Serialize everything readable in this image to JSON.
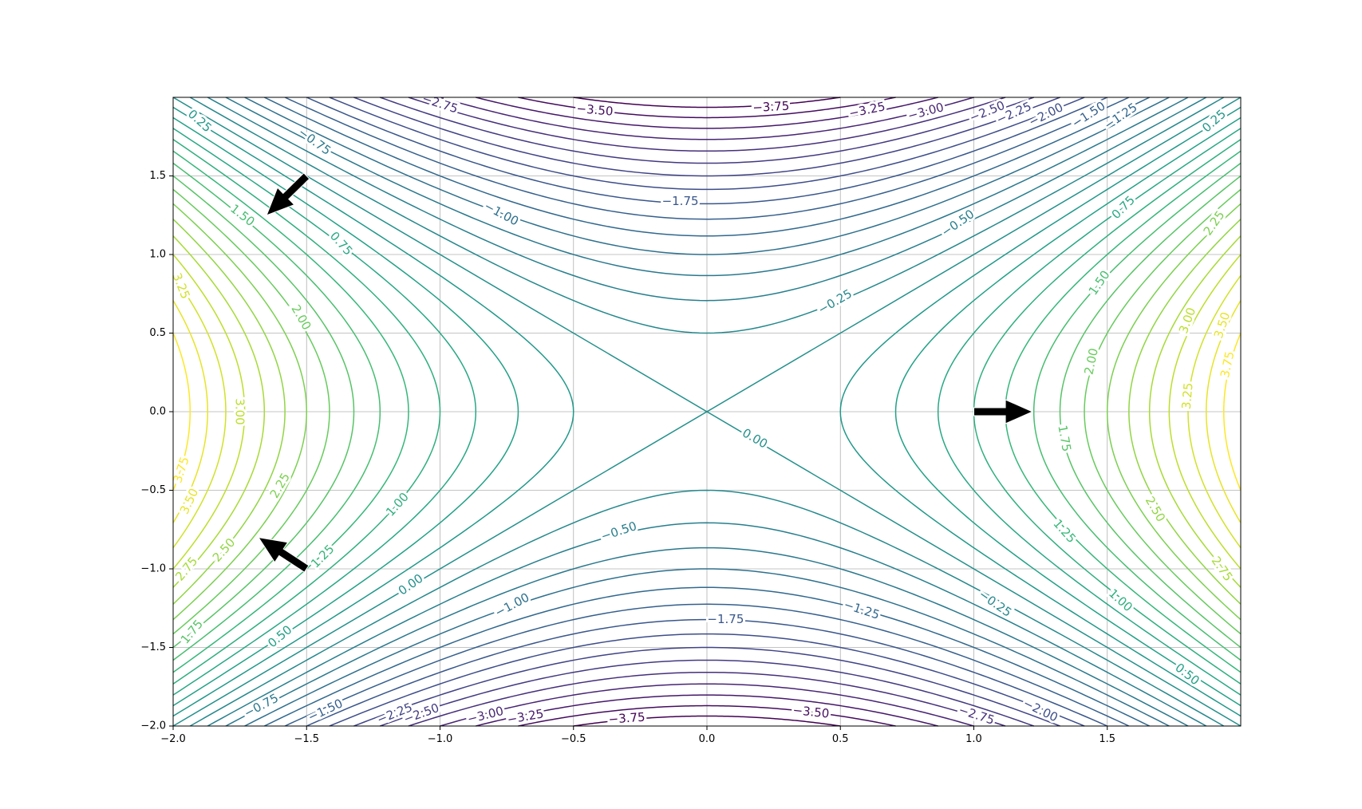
{
  "chart_data": {
    "type": "contour",
    "title": "",
    "xlabel": "",
    "ylabel": "",
    "function": "z = x^2 - y^2",
    "xlim": [
      -2.0,
      2.0
    ],
    "ylim": [
      -2.0,
      2.0
    ],
    "grid": true,
    "colormap": "viridis",
    "x_ticks": [
      "−2.0",
      "−1.5",
      "−1.0",
      "−0.5",
      "0.0",
      "0.5",
      "1.0",
      "1.5"
    ],
    "x_tick_values": [
      -2.0,
      -1.5,
      -1.0,
      -0.5,
      0.0,
      0.5,
      1.0,
      1.5
    ],
    "y_ticks": [
      "−2.0",
      "−1.5",
      "−1.0",
      "−0.5",
      "0.0",
      "0.5",
      "1.0",
      "1.5"
    ],
    "y_tick_values": [
      -2.0,
      -1.5,
      -1.0,
      -0.5,
      0.0,
      0.5,
      1.0,
      1.5
    ],
    "levels": [
      -3.75,
      -3.5,
      -3.25,
      -3.0,
      -2.75,
      -2.5,
      -2.25,
      -2.0,
      -1.75,
      -1.5,
      -1.25,
      -1.0,
      -0.75,
      -0.5,
      -0.25,
      0.0,
      0.25,
      0.5,
      0.75,
      1.0,
      1.25,
      1.5,
      1.75,
      2.0,
      2.25,
      2.5,
      2.75,
      3.0,
      3.25,
      3.5,
      3.75
    ],
    "contour_labels": [
      {
        "text": "−2.75",
        "value": -2.75,
        "x": -1.0,
        "y": 1.96,
        "angle": 18
      },
      {
        "text": "−3.50",
        "value": -3.5,
        "x": -0.42,
        "y": 1.92,
        "angle": 5
      },
      {
        "text": "−3.75",
        "value": -3.75,
        "x": 0.24,
        "y": 1.94,
        "angle": -3
      },
      {
        "text": "−3.25",
        "value": -3.25,
        "x": 0.6,
        "y": 1.92,
        "angle": -12
      },
      {
        "text": "−3.00",
        "value": -3.0,
        "x": 0.82,
        "y": 1.91,
        "angle": -15
      },
      {
        "text": "−2.50",
        "value": -2.5,
        "x": 1.05,
        "y": 1.91,
        "angle": -22
      },
      {
        "text": "−2.25",
        "value": -2.25,
        "x": 1.15,
        "y": 1.9,
        "angle": -24
      },
      {
        "text": "−2.00",
        "value": -2.0,
        "x": 1.27,
        "y": 1.89,
        "angle": -27
      },
      {
        "text": "−1.50",
        "value": -1.5,
        "x": 1.43,
        "y": 1.89,
        "angle": -33
      },
      {
        "text": "−1.25",
        "value": -1.25,
        "x": 1.55,
        "y": 1.88,
        "angle": -34
      },
      {
        "text": "0.25",
        "value": 0.25,
        "x": -1.9,
        "y": 1.85,
        "angle": 42
      },
      {
        "text": "0.25",
        "value": 0.25,
        "x": 1.9,
        "y": 1.85,
        "angle": -42
      },
      {
        "text": "−0.75",
        "value": -0.75,
        "x": -1.47,
        "y": 1.72,
        "angle": 36
      },
      {
        "text": "−1.00",
        "value": -1.0,
        "x": -0.77,
        "y": 1.26,
        "angle": 28
      },
      {
        "text": "−1.75",
        "value": -1.75,
        "x": -0.1,
        "y": 1.34,
        "angle": 0
      },
      {
        "text": "0.75",
        "value": 0.75,
        "x": 1.56,
        "y": 1.3,
        "angle": -45
      },
      {
        "text": "2.25",
        "value": 2.25,
        "x": 1.9,
        "y": 1.2,
        "angle": -55
      },
      {
        "text": "1.50",
        "value": 1.5,
        "x": -1.74,
        "y": 1.25,
        "angle": 38
      },
      {
        "text": "−0.50",
        "value": -0.5,
        "x": 0.94,
        "y": 1.2,
        "angle": -35
      },
      {
        "text": "0.75",
        "value": 0.75,
        "x": -1.37,
        "y": 1.07,
        "angle": 48
      },
      {
        "text": "3.25",
        "value": 3.25,
        "x": -1.97,
        "y": 0.8,
        "angle": 68
      },
      {
        "text": "1.50",
        "value": 1.5,
        "x": 1.47,
        "y": 0.82,
        "angle": -55
      },
      {
        "text": "2.00",
        "value": 2.0,
        "x": -1.52,
        "y": 0.6,
        "angle": 60
      },
      {
        "text": "−0.25",
        "value": -0.25,
        "x": 0.48,
        "y": 0.7,
        "angle": -30
      },
      {
        "text": "3.00",
        "value": 3.0,
        "x": 1.8,
        "y": 0.58,
        "angle": -70
      },
      {
        "text": "3.50",
        "value": 3.5,
        "x": 1.93,
        "y": 0.55,
        "angle": -72
      },
      {
        "text": "3.75",
        "value": 3.75,
        "x": 1.95,
        "y": 0.3,
        "angle": -78
      },
      {
        "text": "2.00",
        "value": 2.0,
        "x": 1.44,
        "y": 0.32,
        "angle": -78
      },
      {
        "text": "3.25",
        "value": 3.25,
        "x": 1.8,
        "y": 0.1,
        "angle": -85
      },
      {
        "text": "3.00",
        "value": 3.0,
        "x": -1.75,
        "y": 0.0,
        "angle": 90
      },
      {
        "text": "0.00",
        "value": 0.0,
        "x": 0.18,
        "y": -0.17,
        "angle": 30
      },
      {
        "text": "1.75",
        "value": 1.75,
        "x": 1.34,
        "y": -0.17,
        "angle": 80
      },
      {
        "text": "3.75",
        "value": 3.75,
        "x": -1.97,
        "y": -0.37,
        "angle": -72
      },
      {
        "text": "3.50",
        "value": 3.5,
        "x": -1.94,
        "y": -0.57,
        "angle": -65
      },
      {
        "text": "2.25",
        "value": 2.25,
        "x": -1.6,
        "y": -0.47,
        "angle": -60
      },
      {
        "text": "1.00",
        "value": 1.0,
        "x": -1.16,
        "y": -0.59,
        "angle": -48
      },
      {
        "text": "2.50",
        "value": 2.5,
        "x": 1.68,
        "y": -0.62,
        "angle": 60
      },
      {
        "text": "−0.50",
        "value": -0.5,
        "x": -0.33,
        "y": -0.76,
        "angle": -18
      },
      {
        "text": "1.25",
        "value": 1.25,
        "x": 1.34,
        "y": -0.76,
        "angle": 48
      },
      {
        "text": "2.50",
        "value": 2.5,
        "x": -1.81,
        "y": -0.88,
        "angle": -48
      },
      {
        "text": "1.25",
        "value": 1.25,
        "x": -1.44,
        "y": -0.92,
        "angle": -45
      },
      {
        "text": "2.75",
        "value": 2.75,
        "x": -1.95,
        "y": -1.0,
        "angle": -50
      },
      {
        "text": "2.75",
        "value": 2.75,
        "x": 1.93,
        "y": -1.0,
        "angle": 55
      },
      {
        "text": "0.00",
        "value": 0.0,
        "x": -1.11,
        "y": -1.1,
        "angle": -35
      },
      {
        "text": "−1.00",
        "value": -1.0,
        "x": -0.73,
        "y": -1.23,
        "angle": -28
      },
      {
        "text": "−1.25",
        "value": -1.25,
        "x": 0.58,
        "y": -1.26,
        "angle": 18
      },
      {
        "text": "−0.25",
        "value": -0.25,
        "x": 1.08,
        "y": -1.22,
        "angle": 35
      },
      {
        "text": "1.00",
        "value": 1.0,
        "x": 1.55,
        "y": -1.2,
        "angle": 42
      },
      {
        "text": "−1.75",
        "value": -1.75,
        "x": 0.07,
        "y": -1.32,
        "angle": 0
      },
      {
        "text": "1.75",
        "value": 1.75,
        "x": -1.93,
        "y": -1.4,
        "angle": -50
      },
      {
        "text": "0.50",
        "value": 0.5,
        "x": -1.6,
        "y": -1.43,
        "angle": -40
      },
      {
        "text": "0.50",
        "value": 0.5,
        "x": 1.8,
        "y": -1.67,
        "angle": 38
      },
      {
        "text": "−0.75",
        "value": -0.75,
        "x": -1.67,
        "y": -1.87,
        "angle": -28
      },
      {
        "text": "−1.50",
        "value": -1.5,
        "x": -1.43,
        "y": -1.9,
        "angle": -25
      },
      {
        "text": "−2.25",
        "value": -2.25,
        "x": -1.17,
        "y": -1.92,
        "angle": -22
      },
      {
        "text": "−2.50",
        "value": -2.5,
        "x": -1.07,
        "y": -1.92,
        "angle": -20
      },
      {
        "text": "−3.00",
        "value": -3.0,
        "x": -0.83,
        "y": -1.93,
        "angle": -14
      },
      {
        "text": "−3.25",
        "value": -3.25,
        "x": -0.68,
        "y": -1.94,
        "angle": -10
      },
      {
        "text": "−3.75",
        "value": -3.75,
        "x": -0.3,
        "y": -1.95,
        "angle": -4
      },
      {
        "text": "−3.50",
        "value": -3.5,
        "x": 0.39,
        "y": -1.91,
        "angle": 6
      },
      {
        "text": "−2.75",
        "value": -2.75,
        "x": 1.01,
        "y": -1.93,
        "angle": 18
      },
      {
        "text": "−2.00",
        "value": -2.0,
        "x": 1.25,
        "y": -1.9,
        "angle": 26
      }
    ],
    "arrows": [
      {
        "from": [
          -1.5,
          1.5
        ],
        "to": [
          -1.65,
          1.25
        ]
      },
      {
        "from": [
          -1.5,
          -1.0
        ],
        "to": [
          -1.68,
          -0.8
        ]
      },
      {
        "from": [
          1.0,
          0.0
        ],
        "to": [
          1.22,
          0.0
        ]
      }
    ]
  }
}
